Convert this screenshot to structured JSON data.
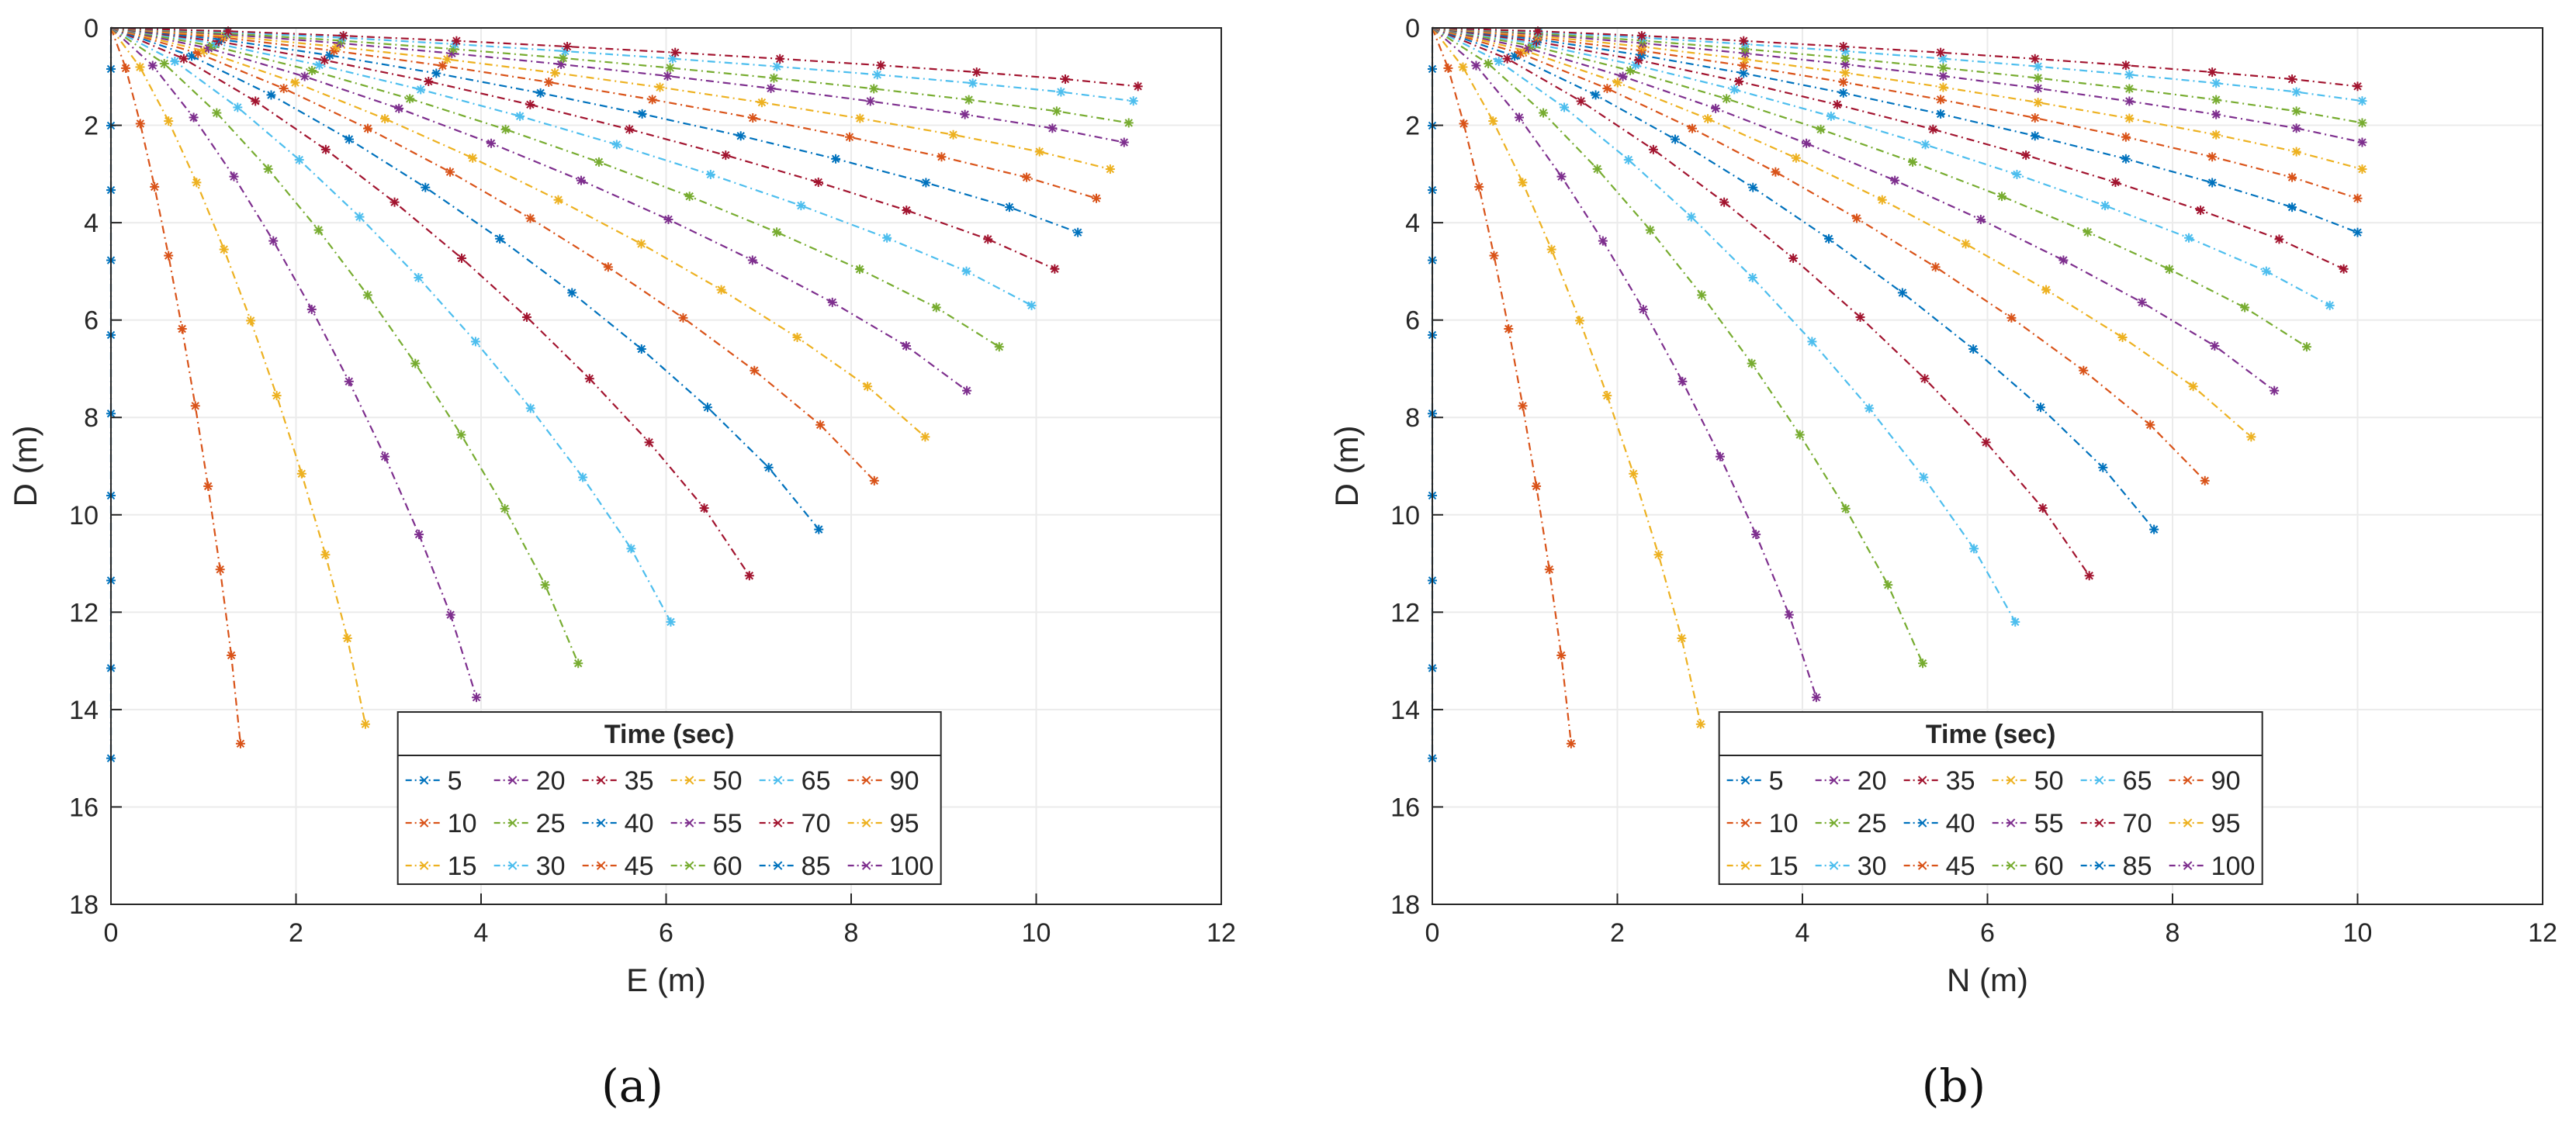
{
  "chart_data": [
    {
      "type": "line",
      "panel": "(a)",
      "xlabel": "E (m)",
      "ylabel": "D (m)",
      "xlim": [
        0,
        12
      ],
      "ylim": [
        0,
        18
      ],
      "y_reversed": true,
      "grid": true,
      "x_ticks": [
        "0",
        "2",
        "4",
        "6",
        "8",
        "10",
        "12"
      ],
      "y_ticks": [
        "0",
        "2",
        "4",
        "6",
        "8",
        "10",
        "12",
        "14",
        "16",
        "18"
      ],
      "legend_title": "Time (sec)",
      "legend_placement": "bottom-center",
      "series": [
        {
          "name": "5",
          "color": "#0072BD",
          "end": [
            0,
            15.0
          ]
        },
        {
          "name": "10",
          "color": "#D95319",
          "end": [
            1.4,
            14.7
          ]
        },
        {
          "name": "15",
          "color": "#EDB120",
          "end": [
            2.75,
            14.3
          ]
        },
        {
          "name": "20",
          "color": "#7E2F8E",
          "end": [
            3.95,
            13.75
          ]
        },
        {
          "name": "25",
          "color": "#77AC30",
          "end": [
            5.05,
            13.05
          ]
        },
        {
          "name": "30",
          "color": "#4DBEEE",
          "end": [
            6.05,
            12.2
          ]
        },
        {
          "name": "35",
          "color": "#A2142F",
          "end": [
            6.9,
            11.25
          ]
        },
        {
          "name": "40",
          "color": "#0072BD",
          "end": [
            7.65,
            10.3
          ]
        },
        {
          "name": "45",
          "color": "#D95319",
          "end": [
            8.25,
            9.3
          ]
        },
        {
          "name": "50",
          "color": "#EDB120",
          "end": [
            8.8,
            8.4
          ]
        },
        {
          "name": "55",
          "color": "#7E2F8E",
          "end": [
            9.25,
            7.45
          ]
        },
        {
          "name": "60",
          "color": "#77AC30",
          "end": [
            9.6,
            6.55
          ]
        },
        {
          "name": "65",
          "color": "#4DBEEE",
          "end": [
            9.95,
            5.7
          ]
        },
        {
          "name": "70",
          "color": "#A2142F",
          "end": [
            10.2,
            4.95
          ]
        },
        {
          "name": "85",
          "color": "#0072BD",
          "end": [
            10.45,
            4.2
          ]
        },
        {
          "name": "90",
          "color": "#D95319",
          "end": [
            10.65,
            3.5
          ]
        },
        {
          "name": "95",
          "color": "#EDB120",
          "end": [
            10.8,
            2.9
          ]
        },
        {
          "name": "100",
          "color": "#7E2F8E",
          "end": [
            10.95,
            2.35
          ]
        },
        {
          "name": "",
          "color": "#77AC30",
          "end": [
            11.0,
            1.95
          ]
        },
        {
          "name": "",
          "color": "#4DBEEE",
          "end": [
            11.05,
            1.5
          ]
        },
        {
          "name": "",
          "color": "#A2142F",
          "end": [
            11.1,
            1.2
          ]
        }
      ]
    },
    {
      "type": "line",
      "panel": "(b)",
      "xlabel": "N (m)",
      "ylabel": "D (m)",
      "xlim": [
        0,
        12
      ],
      "ylim": [
        0,
        18
      ],
      "y_reversed": true,
      "grid": true,
      "x_ticks": [
        "0",
        "2",
        "4",
        "6",
        "8",
        "10",
        "12"
      ],
      "y_ticks": [
        "0",
        "2",
        "4",
        "6",
        "8",
        "10",
        "12",
        "14",
        "16",
        "18"
      ],
      "legend_title": "Time (sec)",
      "legend_placement": "bottom-center",
      "series": [
        {
          "name": "5",
          "color": "#0072BD",
          "end": [
            0,
            15.0
          ]
        },
        {
          "name": "10",
          "color": "#D95319",
          "end": [
            1.5,
            14.7
          ]
        },
        {
          "name": "15",
          "color": "#EDB120",
          "end": [
            2.9,
            14.3
          ]
        },
        {
          "name": "20",
          "color": "#7E2F8E",
          "end": [
            4.15,
            13.75
          ]
        },
        {
          "name": "25",
          "color": "#77AC30",
          "end": [
            5.3,
            13.05
          ]
        },
        {
          "name": "30",
          "color": "#4DBEEE",
          "end": [
            6.3,
            12.2
          ]
        },
        {
          "name": "35",
          "color": "#A2142F",
          "end": [
            7.1,
            11.25
          ]
        },
        {
          "name": "40",
          "color": "#0072BD",
          "end": [
            7.8,
            10.3
          ]
        },
        {
          "name": "45",
          "color": "#D95319",
          "end": [
            8.35,
            9.3
          ]
        },
        {
          "name": "50",
          "color": "#EDB120",
          "end": [
            8.85,
            8.4
          ]
        },
        {
          "name": "55",
          "color": "#7E2F8E",
          "end": [
            9.1,
            7.45
          ]
        },
        {
          "name": "60",
          "color": "#77AC30",
          "end": [
            9.45,
            6.55
          ]
        },
        {
          "name": "65",
          "color": "#4DBEEE",
          "end": [
            9.7,
            5.7
          ]
        },
        {
          "name": "70",
          "color": "#A2142F",
          "end": [
            9.85,
            4.95
          ]
        },
        {
          "name": "85",
          "color": "#0072BD",
          "end": [
            10.0,
            4.2
          ]
        },
        {
          "name": "90",
          "color": "#D95319",
          "end": [
            10.0,
            3.5
          ]
        },
        {
          "name": "95",
          "color": "#EDB120",
          "end": [
            10.05,
            2.9
          ]
        },
        {
          "name": "100",
          "color": "#7E2F8E",
          "end": [
            10.05,
            2.35
          ]
        },
        {
          "name": "",
          "color": "#77AC30",
          "end": [
            10.05,
            1.95
          ]
        },
        {
          "name": "",
          "color": "#4DBEEE",
          "end": [
            10.05,
            1.5
          ]
        },
        {
          "name": "",
          "color": "#A2142F",
          "end": [
            10.0,
            1.2
          ]
        }
      ]
    }
  ],
  "legend": {
    "title": "Time (sec)",
    "columns": [
      [
        "5",
        "10",
        "15"
      ],
      [
        "20",
        "25",
        "30"
      ],
      [
        "35",
        "40",
        "45"
      ],
      [
        "50",
        "55",
        "60"
      ],
      [
        "65",
        "70",
        "85"
      ],
      [
        "90",
        "95",
        "100"
      ]
    ],
    "colors": [
      [
        "#0072BD",
        "#D95319",
        "#EDB120"
      ],
      [
        "#7E2F8E",
        "#77AC30",
        "#4DBEEE"
      ],
      [
        "#A2142F",
        "#0072BD",
        "#D95319"
      ],
      [
        "#EDB120",
        "#7E2F8E",
        "#77AC30"
      ],
      [
        "#4DBEEE",
        "#A2142F",
        "#0072BD"
      ],
      [
        "#D95319",
        "#EDB120",
        "#7E2F8E"
      ]
    ]
  },
  "captions": {
    "a": "(a)",
    "b": "(b)"
  }
}
